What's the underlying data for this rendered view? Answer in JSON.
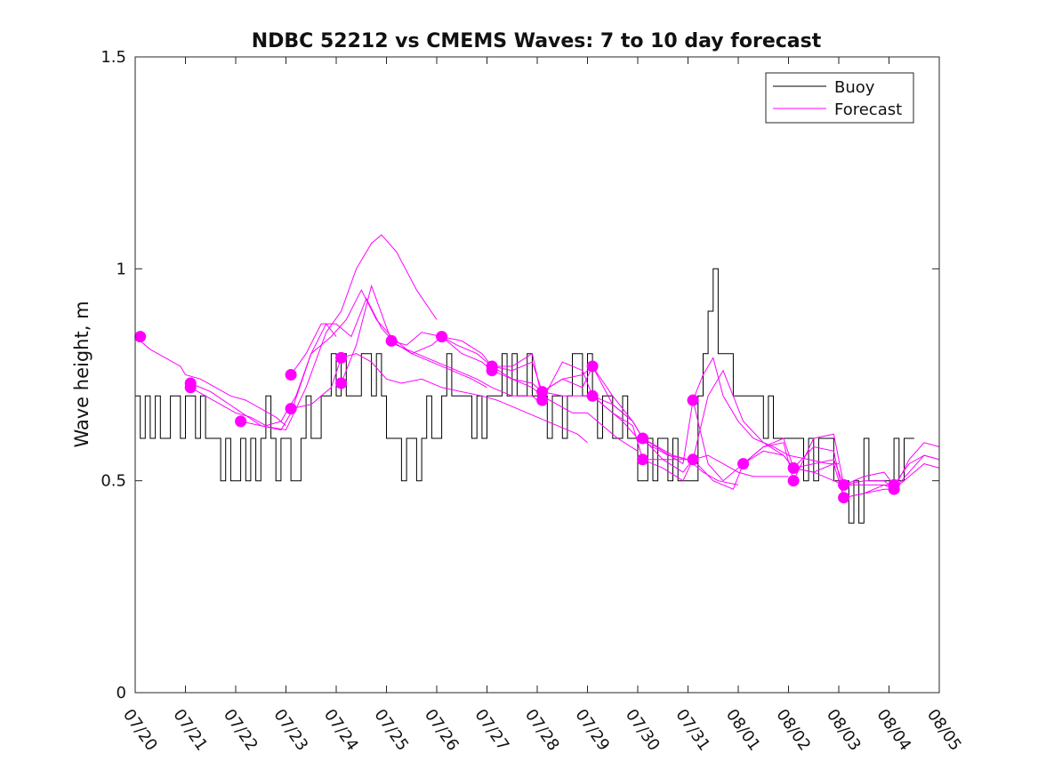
{
  "chart_data": {
    "type": "line",
    "title": "NDBC 52212 vs CMEMS Waves: 7 to 10 day forecast",
    "ylabel": "Wave height, m",
    "xlabel": "",
    "ylim": [
      0,
      1.5
    ],
    "yticks": [
      0,
      0.5,
      1,
      1.5
    ],
    "ytick_labels": [
      "0",
      "0.5",
      "1",
      "1.5"
    ],
    "xlim": [
      0,
      16
    ],
    "xticks": [
      0,
      1,
      2,
      3,
      4,
      5,
      6,
      7,
      8,
      9,
      10,
      11,
      12,
      13,
      14,
      15,
      16
    ],
    "xtick_labels": [
      "07/20",
      "07/21",
      "07/22",
      "07/23",
      "07/24",
      "07/25",
      "07/26",
      "07/27",
      "07/28",
      "07/29",
      "07/30",
      "07/31",
      "08/01",
      "08/02",
      "08/03",
      "08/04",
      "08/05"
    ],
    "legend": {
      "placement": "top-right",
      "entries": [
        {
          "label": "Buoy",
          "color": "#000000"
        },
        {
          "label": "Forecast",
          "color": "#ff00ff"
        }
      ]
    },
    "colors": {
      "buoy": "#000000",
      "forecast": "#ff00ff"
    },
    "buoy": {
      "x": [
        0.0,
        0.1,
        0.2,
        0.3,
        0.4,
        0.5,
        0.6,
        0.7,
        0.8,
        0.9,
        1.0,
        1.1,
        1.2,
        1.3,
        1.4,
        1.5,
        1.6,
        1.7,
        1.8,
        1.9,
        2.0,
        2.1,
        2.2,
        2.3,
        2.4,
        2.5,
        2.6,
        2.7,
        2.8,
        2.9,
        3.0,
        3.1,
        3.2,
        3.3,
        3.4,
        3.5,
        3.6,
        3.7,
        3.8,
        3.9,
        4.0,
        4.1,
        4.2,
        4.3,
        4.4,
        4.5,
        4.6,
        4.7,
        4.8,
        4.9,
        5.0,
        5.1,
        5.2,
        5.3,
        5.4,
        5.5,
        5.6,
        5.7,
        5.8,
        5.9,
        6.0,
        6.1,
        6.2,
        6.3,
        6.4,
        6.5,
        6.6,
        6.7,
        6.8,
        6.9,
        7.0,
        7.1,
        7.2,
        7.3,
        7.4,
        7.5,
        7.6,
        7.7,
        7.8,
        7.9,
        8.0,
        8.1,
        8.2,
        8.3,
        8.4,
        8.5,
        8.6,
        8.7,
        8.8,
        8.9,
        9.0,
        9.1,
        9.2,
        9.3,
        9.4,
        9.5,
        9.6,
        9.7,
        9.8,
        9.9,
        10.0,
        10.1,
        10.2,
        10.3,
        10.4,
        10.5,
        10.6,
        10.7,
        10.8,
        10.9,
        11.0,
        11.1,
        11.2,
        11.3,
        11.4,
        11.5,
        11.6,
        11.7,
        11.8,
        11.9,
        12.0,
        12.1,
        12.2,
        12.3,
        12.4,
        12.5,
        12.6,
        12.7,
        12.8,
        12.9,
        13.0,
        13.1,
        13.2,
        13.3,
        13.4,
        13.5,
        13.6,
        13.7,
        13.8,
        13.9,
        14.0,
        14.1,
        14.2,
        14.3,
        14.4,
        14.5,
        14.6,
        14.7,
        14.8,
        14.9,
        15.0,
        15.1,
        15.2,
        15.3,
        15.4
      ],
      "y": [
        0.7,
        0.6,
        0.7,
        0.6,
        0.7,
        0.6,
        0.6,
        0.7,
        0.7,
        0.6,
        0.7,
        0.7,
        0.6,
        0.7,
        0.6,
        0.6,
        0.6,
        0.5,
        0.6,
        0.5,
        0.5,
        0.6,
        0.5,
        0.6,
        0.5,
        0.6,
        0.7,
        0.6,
        0.5,
        0.6,
        0.6,
        0.5,
        0.5,
        0.6,
        0.7,
        0.6,
        0.6,
        0.7,
        0.7,
        0.8,
        0.7,
        0.8,
        0.7,
        0.7,
        0.7,
        0.8,
        0.8,
        0.7,
        0.8,
        0.7,
        0.6,
        0.6,
        0.6,
        0.5,
        0.6,
        0.6,
        0.5,
        0.6,
        0.7,
        0.6,
        0.6,
        0.7,
        0.8,
        0.7,
        0.7,
        0.7,
        0.7,
        0.6,
        0.7,
        0.6,
        0.7,
        0.7,
        0.7,
        0.8,
        0.7,
        0.8,
        0.7,
        0.7,
        0.8,
        0.7,
        0.7,
        0.7,
        0.6,
        0.7,
        0.7,
        0.6,
        0.7,
        0.8,
        0.8,
        0.7,
        0.8,
        0.7,
        0.6,
        0.7,
        0.7,
        0.6,
        0.6,
        0.7,
        0.6,
        0.6,
        0.5,
        0.5,
        0.6,
        0.5,
        0.6,
        0.6,
        0.5,
        0.6,
        0.5,
        0.5,
        0.5,
        0.5,
        0.7,
        0.8,
        0.9,
        1.0,
        0.8,
        0.8,
        0.8,
        0.7,
        0.7,
        0.7,
        0.7,
        0.7,
        0.7,
        0.6,
        0.7,
        0.6,
        0.6,
        0.6,
        0.6,
        0.6,
        0.6,
        0.5,
        0.6,
        0.5,
        0.6,
        0.6,
        0.6,
        0.5,
        0.5,
        0.5,
        0.4,
        0.5,
        0.4,
        0.6,
        0.5,
        0.5,
        0.5,
        0.5,
        0.5,
        0.6,
        0.5,
        0.6,
        0.6
      ]
    },
    "forecast_series": [
      {
        "x": [
          0.0,
          0.3,
          0.6,
          0.9,
          1.0,
          1.3,
          1.6,
          1.9,
          2.2,
          2.5,
          2.8,
          3.0
        ],
        "y": [
          0.84,
          0.81,
          0.79,
          0.77,
          0.75,
          0.74,
          0.72,
          0.7,
          0.69,
          0.67,
          0.65,
          0.63
        ]
      },
      {
        "x": [
          1.1,
          1.4,
          1.7,
          2.0,
          2.3,
          2.6,
          2.9,
          3.2,
          3.5,
          3.8,
          4.0
        ],
        "y": [
          0.72,
          0.7,
          0.68,
          0.66,
          0.65,
          0.63,
          0.64,
          0.7,
          0.8,
          0.87,
          0.84
        ]
      },
      {
        "x": [
          1.1,
          1.5,
          2.0,
          2.5,
          3.0,
          3.4,
          3.8,
          4.1,
          4.4,
          4.7,
          4.9,
          5.2,
          5.6,
          6.0
        ],
        "y": [
          0.73,
          0.71,
          0.67,
          0.63,
          0.62,
          0.72,
          0.85,
          0.9,
          1.0,
          1.06,
          1.08,
          1.04,
          0.95,
          0.88
        ]
      },
      {
        "x": [
          2.1,
          2.5,
          2.9,
          3.1,
          3.5,
          3.9,
          4.2,
          4.5,
          4.8,
          5.1,
          5.5,
          5.9,
          6.3,
          6.7,
          7.0
        ],
        "y": [
          0.64,
          0.63,
          0.62,
          0.66,
          0.8,
          0.84,
          0.88,
          0.95,
          0.88,
          0.84,
          0.8,
          0.78,
          0.76,
          0.74,
          0.72
        ]
      },
      {
        "x": [
          3.1,
          3.4,
          3.7,
          4.0,
          4.3,
          4.6,
          4.9,
          5.2,
          5.6,
          6.0,
          6.4,
          6.8,
          7.1,
          7.5,
          7.9,
          8.0
        ],
        "y": [
          0.75,
          0.8,
          0.87,
          0.87,
          0.84,
          0.93,
          0.86,
          0.82,
          0.8,
          0.78,
          0.76,
          0.74,
          0.72,
          0.7,
          0.7,
          0.69
        ]
      },
      {
        "x": [
          3.1,
          3.5,
          3.9,
          4.1,
          4.4,
          4.7,
          5.0,
          5.3,
          5.7,
          6.1,
          6.5,
          6.9,
          7.2,
          7.6,
          8.0,
          8.4,
          8.8,
          9.0
        ],
        "y": [
          0.67,
          0.68,
          0.72,
          0.79,
          0.8,
          0.78,
          0.74,
          0.73,
          0.74,
          0.72,
          0.71,
          0.7,
          0.69,
          0.67,
          0.65,
          0.63,
          0.61,
          0.59
        ]
      },
      {
        "x": [
          4.1,
          4.4,
          4.7,
          5.1,
          5.4,
          5.7,
          6.1,
          6.4,
          6.8,
          7.1,
          7.5,
          7.9,
          8.1,
          8.4,
          8.7,
          9.0,
          9.3,
          9.6,
          10.0
        ],
        "y": [
          0.73,
          0.82,
          0.96,
          0.83,
          0.82,
          0.85,
          0.84,
          0.82,
          0.8,
          0.77,
          0.74,
          0.72,
          0.7,
          0.68,
          0.66,
          0.66,
          0.63,
          0.6,
          0.57
        ]
      },
      {
        "x": [
          5.1,
          5.5,
          5.9,
          6.1,
          6.5,
          6.9,
          7.1,
          7.5,
          7.9,
          8.1,
          8.5,
          8.9,
          9.1,
          9.4,
          9.7,
          10.0,
          10.3,
          10.6,
          11.0
        ],
        "y": [
          0.83,
          0.8,
          0.82,
          0.84,
          0.8,
          0.78,
          0.76,
          0.74,
          0.73,
          0.71,
          0.7,
          0.7,
          0.7,
          0.67,
          0.64,
          0.6,
          0.58,
          0.56,
          0.55
        ]
      },
      {
        "x": [
          6.1,
          6.5,
          6.9,
          7.1,
          7.5,
          7.9,
          8.1,
          8.5,
          8.9,
          9.1,
          9.5,
          9.9,
          10.1,
          10.4,
          10.7,
          11.0,
          11.3,
          11.6,
          12.0
        ],
        "y": [
          0.84,
          0.83,
          0.8,
          0.77,
          0.76,
          0.78,
          0.71,
          0.74,
          0.72,
          0.77,
          0.68,
          0.64,
          0.6,
          0.58,
          0.56,
          0.55,
          0.52,
          0.5,
          0.49
        ]
      },
      {
        "x": [
          7.1,
          7.5,
          7.9,
          8.1,
          8.5,
          8.9,
          9.1,
          9.5,
          9.9,
          10.1,
          10.5,
          10.9,
          11.1,
          11.4,
          11.7,
          12.0,
          12.3,
          12.6,
          13.0
        ],
        "y": [
          0.77,
          0.77,
          0.8,
          0.69,
          0.78,
          0.76,
          0.7,
          0.66,
          0.63,
          0.55,
          0.55,
          0.55,
          0.55,
          0.56,
          0.54,
          0.52,
          0.51,
          0.51,
          0.51
        ]
      },
      {
        "x": [
          8.1,
          8.5,
          8.9,
          9.1,
          9.5,
          9.9,
          10.1,
          10.5,
          10.9,
          11.1,
          11.3,
          11.5,
          11.7,
          12.0,
          12.3,
          12.7,
          13.0,
          13.4,
          13.8,
          14.0
        ],
        "y": [
          0.71,
          0.74,
          0.75,
          0.77,
          0.7,
          0.64,
          0.6,
          0.57,
          0.54,
          0.69,
          0.75,
          0.79,
          0.7,
          0.64,
          0.6,
          0.58,
          0.56,
          0.55,
          0.54,
          0.54
        ]
      },
      {
        "x": [
          9.1,
          9.5,
          9.9,
          10.1,
          10.5,
          10.9,
          11.1,
          11.4,
          11.7,
          12.1,
          12.5,
          12.9,
          13.1,
          13.5,
          13.9,
          14.1,
          14.5,
          14.9,
          15.0
        ],
        "y": [
          0.7,
          0.68,
          0.64,
          0.6,
          0.55,
          0.52,
          0.55,
          0.7,
          0.76,
          0.64,
          0.59,
          0.56,
          0.53,
          0.52,
          0.5,
          0.49,
          0.49,
          0.49,
          0.49
        ]
      },
      {
        "x": [
          10.1,
          10.5,
          10.9,
          11.1,
          11.5,
          11.9,
          12.1,
          12.5,
          12.9,
          13.1,
          13.5,
          13.9,
          14.1,
          14.5,
          14.9,
          15.1,
          15.4,
          15.7,
          16.0
        ],
        "y": [
          0.55,
          0.53,
          0.5,
          0.55,
          0.5,
          0.48,
          0.54,
          0.58,
          0.6,
          0.53,
          0.58,
          0.57,
          0.46,
          0.47,
          0.48,
          0.48,
          0.52,
          0.56,
          0.55
        ]
      },
      {
        "x": [
          11.1,
          11.4,
          11.7,
          12.1,
          12.5,
          12.9,
          13.1,
          13.5,
          13.9,
          14.1,
          14.5,
          14.9,
          15.1,
          15.4,
          15.7,
          16.0
        ],
        "y": [
          0.69,
          0.54,
          0.5,
          0.54,
          0.58,
          0.59,
          0.5,
          0.6,
          0.61,
          0.49,
          0.5,
          0.5,
          0.48,
          0.55,
          0.59,
          0.58
        ]
      },
      {
        "x": [
          12.1,
          12.5,
          12.9,
          13.1,
          13.5,
          13.9,
          14.1,
          14.5,
          14.9,
          15.1,
          15.4,
          15.7,
          16.0
        ],
        "y": [
          0.54,
          0.57,
          0.56,
          0.53,
          0.54,
          0.55,
          0.49,
          0.51,
          0.52,
          0.49,
          0.54,
          0.56,
          0.55
        ]
      },
      {
        "x": [
          13.1,
          13.5,
          13.9,
          14.1,
          14.5,
          14.9,
          15.1,
          15.4,
          15.7,
          16.0
        ],
        "y": [
          0.53,
          0.52,
          0.54,
          0.46,
          0.47,
          0.49,
          0.48,
          0.51,
          0.54,
          0.53
        ]
      }
    ],
    "forecast_markers": {
      "x": [
        0.1,
        1.1,
        1.1,
        2.1,
        3.1,
        3.1,
        4.1,
        4.1,
        5.1,
        6.1,
        7.1,
        7.1,
        8.1,
        8.1,
        9.1,
        9.1,
        10.1,
        10.1,
        11.1,
        11.1,
        12.1,
        13.1,
        13.1,
        14.1,
        14.1,
        15.1,
        15.1
      ],
      "y": [
        0.84,
        0.73,
        0.72,
        0.64,
        0.75,
        0.67,
        0.79,
        0.73,
        0.83,
        0.84,
        0.77,
        0.76,
        0.71,
        0.69,
        0.77,
        0.7,
        0.6,
        0.55,
        0.69,
        0.55,
        0.54,
        0.53,
        0.5,
        0.49,
        0.46,
        0.49,
        0.48
      ]
    }
  }
}
